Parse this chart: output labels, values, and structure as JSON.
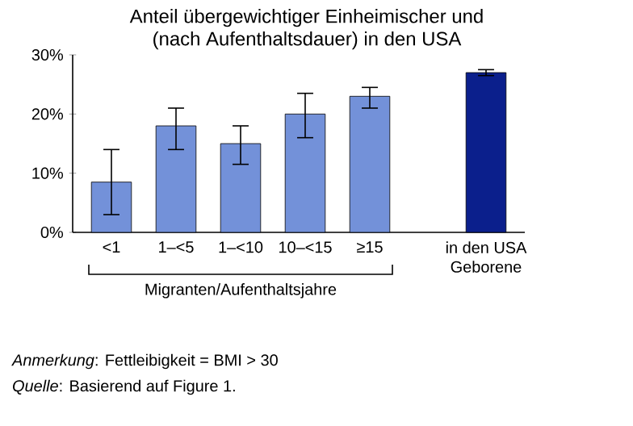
{
  "chart_data": {
    "type": "bar",
    "title": "Anteil übergewichtiger Einheimischer und",
    "subtitle": "(nach Aufenthaltsdauer) in den USA",
    "categories": [
      "<1",
      "1–<5",
      "1–<10",
      "10–<15",
      "≥15",
      "in den USA Geborene"
    ],
    "values": [
      8.5,
      18,
      15,
      20,
      23,
      27
    ],
    "errors": [
      [
        3,
        14
      ],
      [
        14,
        21
      ],
      [
        11.5,
        18
      ],
      [
        16,
        23.5
      ],
      [
        21,
        24.5
      ],
      [
        26.5,
        27.5
      ]
    ],
    "colors": [
      "#7391d9",
      "#7391d9",
      "#7391d9",
      "#7391d9",
      "#7391d9",
      "#0b1f8c"
    ],
    "ylim": [
      0,
      30
    ],
    "yticks": [
      {
        "value": 0,
        "label": "0%"
      },
      {
        "value": 10,
        "label": "10%"
      },
      {
        "value": 20,
        "label": "20%"
      },
      {
        "value": 30,
        "label": "30%"
      }
    ],
    "annotations": [
      "Migranten/Aufenthaltsjahre",
      "*Anmerkung*: Fettleibigkeit = BMI > 30",
      "*Quelle*: Basierend auf Figure 1."
    ]
  }
}
